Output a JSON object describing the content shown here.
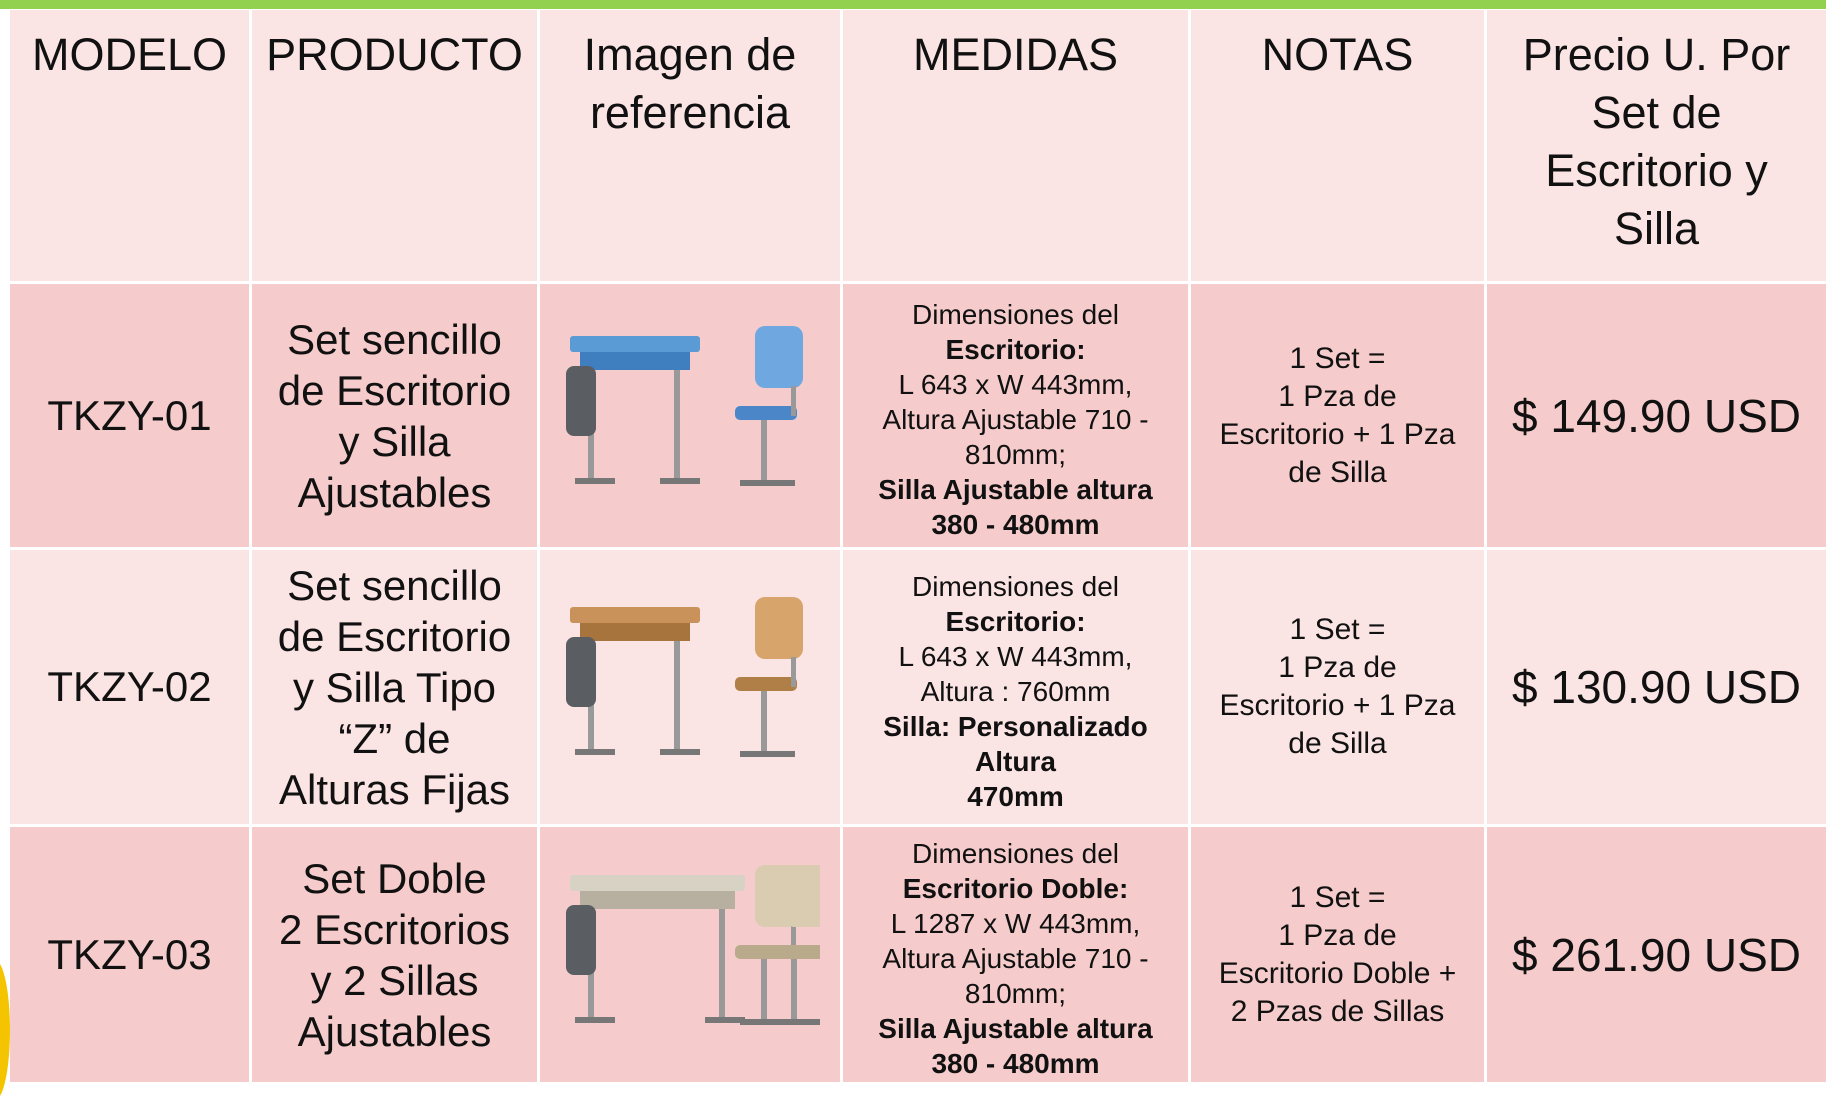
{
  "table": {
    "header": [
      [
        "MODELO"
      ],
      [
        "PRODUCTO"
      ],
      [
        "Imagen de",
        "referencia"
      ],
      [
        "MEDIDAS"
      ],
      [
        "NOTAS"
      ],
      [
        "Precio U. Por",
        "Set de",
        "Escritorio y",
        "Silla"
      ]
    ],
    "rows": [
      {
        "modelo": "TKZY-01",
        "producto": [
          "Set sencillo",
          "de Escritorio",
          "y Silla",
          "Ajustables"
        ],
        "medidas": [
          {
            "text": "Dimensiones del",
            "bold": false
          },
          {
            "text": "Escritorio:",
            "bold": true
          },
          {
            "text": "L 643 x W 443mm,",
            "bold": false
          },
          {
            "text": "Altura Ajustable 710 -",
            "bold": false
          },
          {
            "text": "810mm;",
            "bold": false
          },
          {
            "text": "Silla Ajustable altura",
            "bold": true
          },
          {
            "text": "380 - 480mm",
            "bold": true
          }
        ],
        "notas": [
          "1 Set =",
          "1 Pza de",
          "Escritorio + 1 Pza",
          "de Silla"
        ],
        "precio": "$ 149.90 USD"
      },
      {
        "modelo": "TKZY-02",
        "producto": [
          "Set sencillo",
          "de Escritorio",
          "y Silla Tipo",
          "“Z” de",
          "Alturas Fijas"
        ],
        "medidas": [
          {
            "text": "Dimensiones del",
            "bold": false
          },
          {
            "text": "Escritorio:",
            "bold": true
          },
          {
            "text": "L 643 x W 443mm,",
            "bold": false
          },
          {
            "text": "Altura : 760mm",
            "bold": false
          },
          {
            "text": "Silla: Personalizado",
            "bold": true
          },
          {
            "text": "Altura",
            "bold": true
          },
          {
            "text": "470mm",
            "bold": true
          }
        ],
        "notas": [
          "1 Set =",
          "1 Pza de",
          "Escritorio + 1 Pza",
          "de Silla"
        ],
        "precio": "$ 130.90 USD"
      },
      {
        "modelo": "TKZY-03",
        "producto": [
          "Set Doble",
          "2 Escritorios",
          "y 2 Sillas",
          "Ajustables"
        ],
        "medidas": [
          {
            "text": "Dimensiones del",
            "bold": false
          },
          {
            "text": "Escritorio Doble:",
            "bold": true
          },
          {
            "text": "L 1287 x W 443mm,",
            "bold": false
          },
          {
            "text": "Altura Ajustable 710 -",
            "bold": false
          },
          {
            "text": "810mm;",
            "bold": false
          },
          {
            "text": "Silla Ajustable altura",
            "bold": true
          },
          {
            "text": "380 - 480mm",
            "bold": true
          }
        ],
        "notas": [
          "1 Set =",
          "1 Pza de",
          "Escritorio Doble +",
          "2 Pzas de Sillas"
        ],
        "precio": "$ 261.90 USD"
      }
    ]
  }
}
